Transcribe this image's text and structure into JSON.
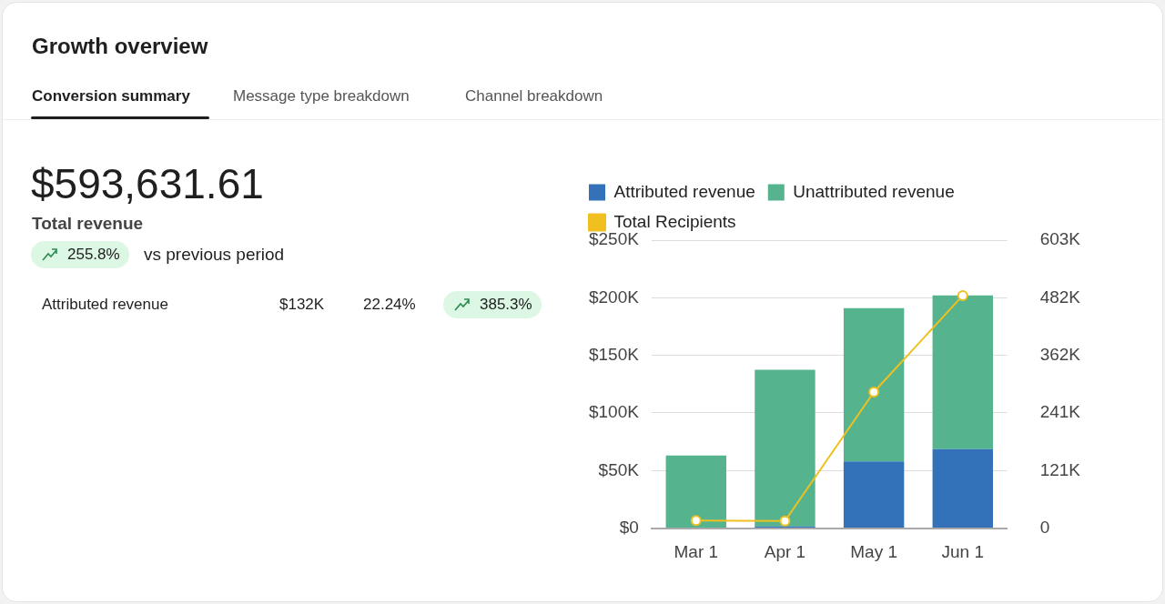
{
  "chart_data": [
    {
      "type": "other",
      "title": "Growth overview",
      "annotations": [
        "Conversion summary",
        "Message type breakdown",
        "Channel breakdown",
        "$593,631.61",
        "Total revenue",
        "255.8%",
        "vs previous period",
        "Attributed revenue",
        "$132K",
        "22.24%",
        "385.3%"
      ]
    },
    {
      "type": "bar",
      "stacked": true,
      "categories": [
        "Mar 1",
        "Apr 1",
        "May 1",
        "Jun 1"
      ],
      "series": [
        {
          "name": "Attributed revenue",
          "color": "#3372b9",
          "values": [
            500,
            1500,
            58000,
            68500
          ]
        },
        {
          "name": "Unattributed revenue",
          "color": "#55b48e",
          "values": [
            62500,
            136000,
            133000,
            133500
          ]
        },
        {
          "name": "Total Recipients",
          "color": "#f0c020",
          "type": "line",
          "axis": "y2",
          "marker": "circle",
          "values": [
            16000,
            15000,
            285000,
            487000
          ]
        }
      ],
      "ylim": [
        0,
        250000
      ],
      "yticks": [
        {
          "value": 0,
          "label": "$0"
        },
        {
          "value": 50000,
          "label": "$50K"
        },
        {
          "value": 100000,
          "label": "$100K"
        },
        {
          "value": 150000,
          "label": "$150K"
        },
        {
          "value": 200000,
          "label": "$200K"
        },
        {
          "value": 250000,
          "label": "$250K"
        }
      ],
      "y2lim": [
        0,
        603000
      ],
      "y2ticks": [
        0,
        {
          "value": 120600,
          "label": "121K"
        },
        {
          "value": 241200,
          "label": "241K"
        },
        {
          "value": 361800,
          "label": "362K"
        },
        {
          "value": 482400,
          "label": "482K"
        },
        {
          "value": 603000,
          "label": "603K"
        }
      ],
      "grid": "y",
      "legend": "top left"
    }
  ]
}
